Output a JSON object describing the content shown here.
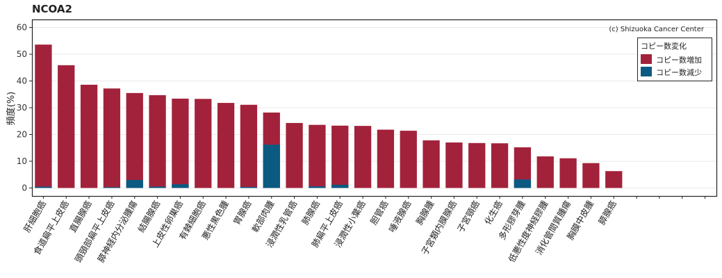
{
  "chart_data": {
    "type": "bar",
    "stacked": true,
    "title": "NCOA2",
    "ylabel": "頻度(%)",
    "xlabel": "",
    "ylim": [
      -3,
      63
    ],
    "yticks": [
      0,
      10,
      20,
      30,
      40,
      50,
      60
    ],
    "grid": true,
    "credit": "(c) Shizuoka Cancer Center",
    "legend": {
      "title": "コピー数変化",
      "position": "top-right",
      "entries": [
        {
          "label": "コピー数増加",
          "color": "#a3223b"
        },
        {
          "label": "コピー数減少",
          "color": "#0b5a82"
        }
      ]
    },
    "total_slots": 30,
    "categories": [
      "肝細胞癌",
      "食道扁平上皮癌",
      "直腸腺癌",
      "頭頸部扁平上皮癌",
      "膵神経内分泌腫瘍",
      "結腸腺癌",
      "上皮性卵巣癌",
      "有棘細胞癌",
      "悪性黒色腫",
      "胃腺癌",
      "軟部肉腫",
      "浸潤性乳管癌",
      "肺腺癌",
      "肺扁平上皮癌",
      "浸潤性小葉癌",
      "胆管癌",
      "唾液腺癌",
      "胸腺腫",
      "子宮類内膜腺癌",
      "子宮頸癌",
      "化生癌",
      "多形膠芽腫",
      "低悪性度神経膠腫",
      "消化管間質腫瘍",
      "胸膜中皮腫",
      "膵腺癌"
    ],
    "series": [
      {
        "name": "コピー数増加",
        "color": "#a3223b",
        "values": [
          53.6,
          45.9,
          38.6,
          37.2,
          35.5,
          34.7,
          33.4,
          33.3,
          31.8,
          31.1,
          28.2,
          24.3,
          23.6,
          23.3,
          23.2,
          21.8,
          21.4,
          17.8,
          17.0,
          16.8,
          16.7,
          15.2,
          11.8,
          11.1,
          9.3,
          6.3
        ]
      },
      {
        "name": "コピー数減少",
        "color": "#0b5a82",
        "values": [
          0.5,
          0,
          0,
          0.3,
          3.0,
          0.5,
          1.4,
          0,
          0,
          0.4,
          16.2,
          0,
          0.6,
          1.2,
          0,
          0,
          0,
          0,
          0,
          0,
          0,
          3.2,
          0,
          0,
          0,
          0
        ]
      }
    ]
  }
}
